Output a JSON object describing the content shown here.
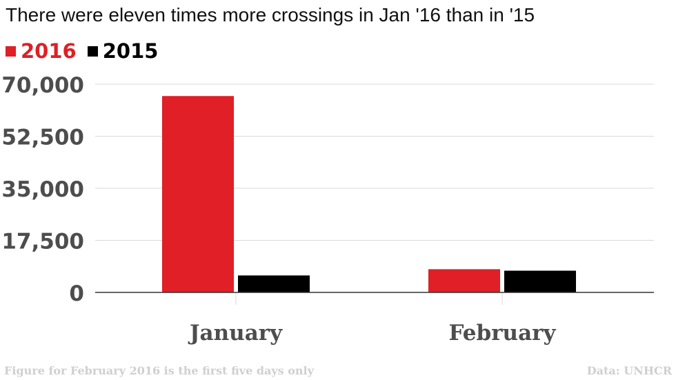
{
  "chart_data": {
    "type": "bar",
    "title": "There were eleven times more crossings in Jan '16 than in '15",
    "categories": [
      "January",
      "February"
    ],
    "series": [
      {
        "name": "2016",
        "color": "#e01f26",
        "values": [
          66000,
          7800
        ]
      },
      {
        "name": "2015",
        "color": "#000000",
        "values": [
          5700,
          7300
        ]
      }
    ],
    "ylim": [
      0,
      70000
    ],
    "yticks": [
      0,
      17500,
      35000,
      52500,
      70000
    ],
    "ytick_labels": [
      "0",
      "17,500",
      "35,000",
      "52,500",
      "70,000"
    ],
    "legend_position": "top-left",
    "grid": true,
    "xlabel": "",
    "ylabel": ""
  },
  "footnote": "Figure for February 2016 is the first five days only",
  "source": "Data: UNHCR"
}
